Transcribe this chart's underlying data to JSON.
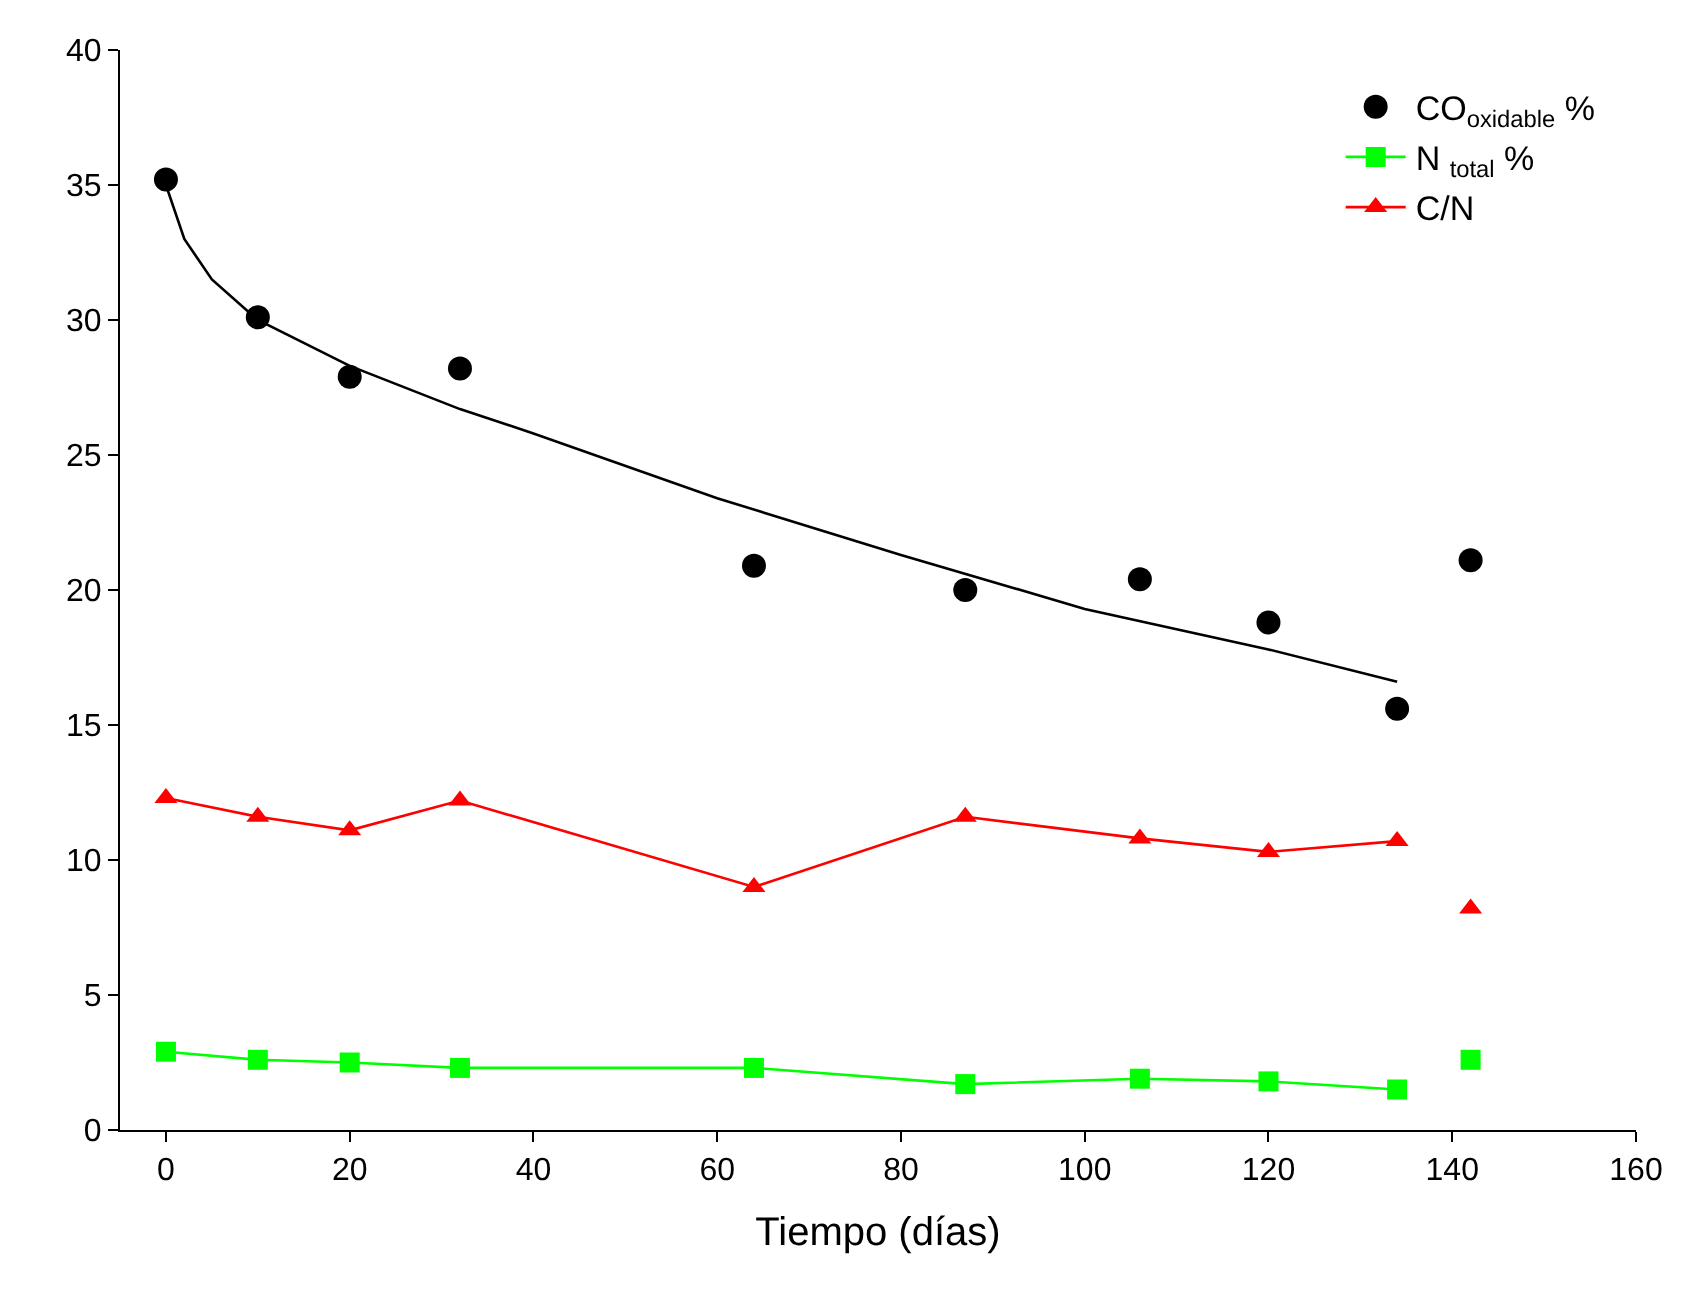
{
  "chart_data": {
    "type": "line",
    "xlabel": "Tiempo (días)",
    "xlim": [
      -5,
      160
    ],
    "ylim": [
      0,
      40
    ],
    "xticks": [
      0,
      20,
      40,
      60,
      80,
      100,
      120,
      140,
      160
    ],
    "yticks": [
      0,
      5,
      10,
      15,
      20,
      25,
      30,
      35,
      40
    ],
    "legend": "top right",
    "series": [
      {
        "name": "CO$_{oxidable}$ %",
        "type": "scatter",
        "marker": "circle",
        "color": "#000000",
        "x": [
          0,
          10,
          20,
          32,
          64,
          87,
          106,
          120,
          134,
          142
        ],
        "values": [
          35.2,
          30.1,
          27.9,
          28.2,
          20.9,
          20.0,
          20.4,
          18.8,
          15.6,
          21.1
        ]
      },
      {
        "name": "N $_{total}$ %",
        "marker": "square",
        "color": "#00ff00",
        "x": [
          0,
          10,
          20,
          32,
          64,
          87,
          106,
          120,
          134
        ],
        "values": [
          2.9,
          2.6,
          2.5,
          2.3,
          2.3,
          1.7,
          1.9,
          1.8,
          1.5
        ]
      },
      {
        "name": "C/N",
        "marker": "triangle",
        "color": "#ff0000",
        "x": [
          0,
          10,
          20,
          32,
          64,
          87,
          106,
          120,
          134
        ],
        "values": [
          12.3,
          11.6,
          11.1,
          12.2,
          9.0,
          11.6,
          10.8,
          10.3,
          10.7
        ]
      },
      {
        "marker": "none",
        "color": "#000000",
        "x": [
          0,
          2,
          5,
          10,
          20,
          32,
          40,
          60,
          80,
          100,
          120,
          134
        ],
        "values": [
          35.0,
          33.0,
          31.5,
          30.0,
          28.3,
          26.7,
          25.8,
          23.4,
          21.3,
          19.3,
          17.8,
          16.6
        ]
      },
      {
        "type": "scatter",
        "marker": "square",
        "color": "#00ff00",
        "x": [
          142
        ],
        "values": [
          2.6
        ]
      },
      {
        "type": "scatter",
        "marker": "triangle",
        "color": "#ff0000",
        "x": [
          142
        ],
        "values": [
          8.2
        ]
      }
    ]
  }
}
